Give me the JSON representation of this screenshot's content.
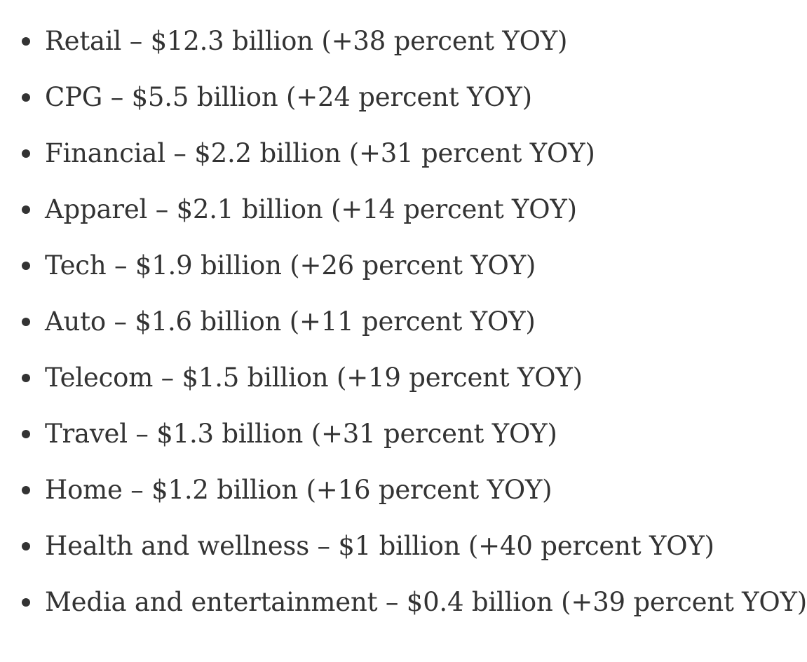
{
  "items": [
    "Retail – $12.3 billion (+38 percent YOY)",
    "CPG – $5.5 billion (+24 percent YOY)",
    "Financial – $2.2 billion (+31 percent YOY)",
    "Apparel – $2.1 billion (+14 percent YOY)",
    "Tech – $1.9 billion (+26 percent YOY)",
    "Auto – $1.6 billion (+11 percent YOY)",
    "Telecom – $1.5 billion (+19 percent YOY)",
    "Travel – $1.3 billion (+31 percent YOY)",
    "Home – $1.2 billion (+16 percent YOY)",
    "Health and wellness – $1 billion (+40 percent YOY)",
    "Media and entertainment – $0.4 billion (+39 percent YOY)"
  ],
  "colors": {
    "text": "#333333",
    "background": "#ffffff"
  }
}
